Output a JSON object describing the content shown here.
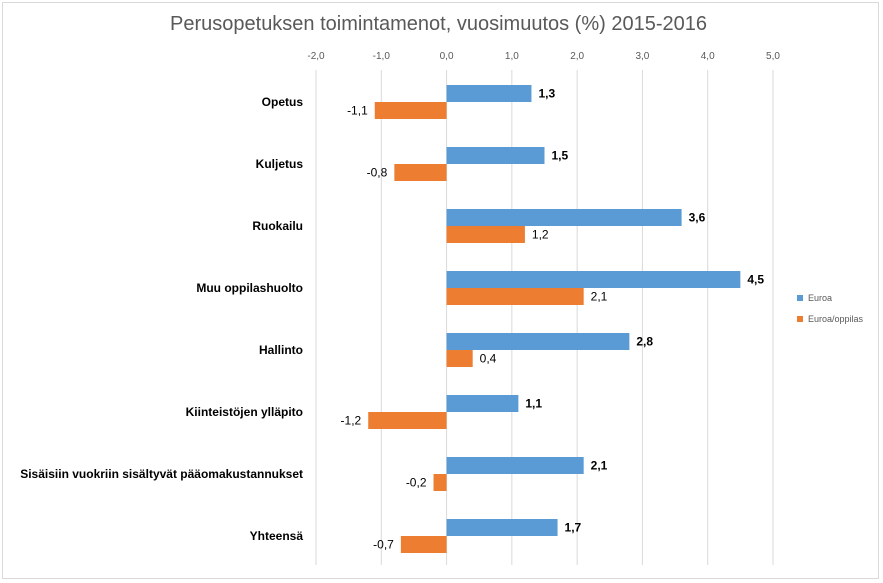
{
  "chart_data": {
    "type": "bar",
    "orientation": "horizontal",
    "title": "Perusopetuksen toimintamenot, vuosimuutos (%) 2015-2016",
    "xlim": [
      -2.0,
      5.0
    ],
    "xticks": [
      "-2,0",
      "-1,0",
      "0,0",
      "1,0",
      "2,0",
      "3,0",
      "4,0",
      "5,0"
    ],
    "categories": [
      "Opetus",
      "Kuljetus",
      "Ruokailu",
      "Muu oppilashuolto",
      "Hallinto",
      "Kiinteistöjen ylläpito",
      "Sisäisiin vuokriin sisältyvät pääomakustannukset",
      "Yhteensä"
    ],
    "series": [
      {
        "name": "Euroa",
        "color": "#5b9bd5",
        "values": [
          1.3,
          1.5,
          3.6,
          4.5,
          2.8,
          1.1,
          2.1,
          1.7
        ],
        "labels": [
          "1,3",
          "1,5",
          "3,6",
          "4,5",
          "2,8",
          "1,1",
          "2,1",
          "1,7"
        ]
      },
      {
        "name": "Euroa/oppilas",
        "color": "#ed7d31",
        "values": [
          -1.1,
          -0.8,
          1.2,
          2.1,
          0.4,
          -1.2,
          -0.2,
          -0.7
        ],
        "labels": [
          "-1,1",
          "-0,8",
          "1,2",
          "2,1",
          "0,4",
          "-1,2",
          "-0,2",
          "-0,7"
        ]
      }
    ],
    "grid": true,
    "legend": "right"
  }
}
